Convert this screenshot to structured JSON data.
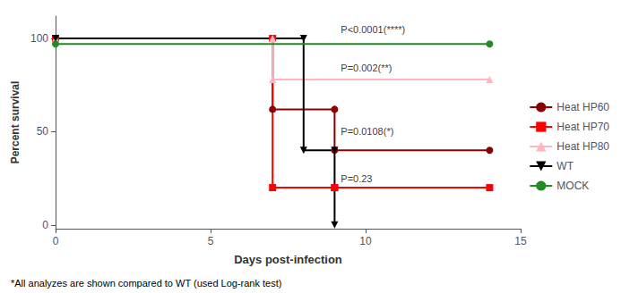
{
  "chart_data": {
    "type": "line",
    "xlabel": "Days post-infection",
    "ylabel": "Percent survival",
    "footnote": "*All analyzes are shown compared to WT (used Log-rank test)",
    "xlim": [
      0,
      15
    ],
    "ylim": [
      -2,
      112
    ],
    "xticks": [
      0,
      5,
      10,
      15
    ],
    "yticks": [
      0,
      50,
      100
    ],
    "grid": false,
    "legend": "right",
    "series": [
      {
        "name": "Heat HP60",
        "color": "#8B0000",
        "marker": "circle",
        "x": [
          0,
          7,
          7,
          9,
          9,
          14
        ],
        "values": [
          100,
          100,
          62,
          62,
          40,
          40
        ]
      },
      {
        "name": "Heat HP70",
        "color": "#FF0000",
        "marker": "square",
        "x": [
          0,
          7,
          7,
          9,
          9,
          14
        ],
        "values": [
          100,
          100,
          20,
          20,
          20,
          20
        ]
      },
      {
        "name": "Heat HP80",
        "color": "#FFB6C1",
        "marker": "triangle_up",
        "x": [
          0,
          7,
          7,
          14
        ],
        "values": [
          100,
          100,
          78,
          78
        ]
      },
      {
        "name": "WT",
        "color": "#000000",
        "marker": "triangle_down",
        "x": [
          0,
          8,
          8,
          9,
          9
        ],
        "values": [
          100,
          100,
          40,
          40,
          0
        ]
      },
      {
        "name": "MOCK",
        "color": "#228B22",
        "marker": "circle",
        "x": [
          0,
          14
        ],
        "values": [
          97,
          97
        ]
      }
    ],
    "annotations": [
      {
        "text": "P<0.0001(****)",
        "x": 9.2,
        "y": 105
      },
      {
        "text": "P=0.002(**)",
        "x": 9.2,
        "y": 84
      },
      {
        "text": "P=0.0108(*)",
        "x": 9.2,
        "y": 50
      },
      {
        "text": "P=0.23",
        "x": 9.2,
        "y": 25
      }
    ]
  }
}
